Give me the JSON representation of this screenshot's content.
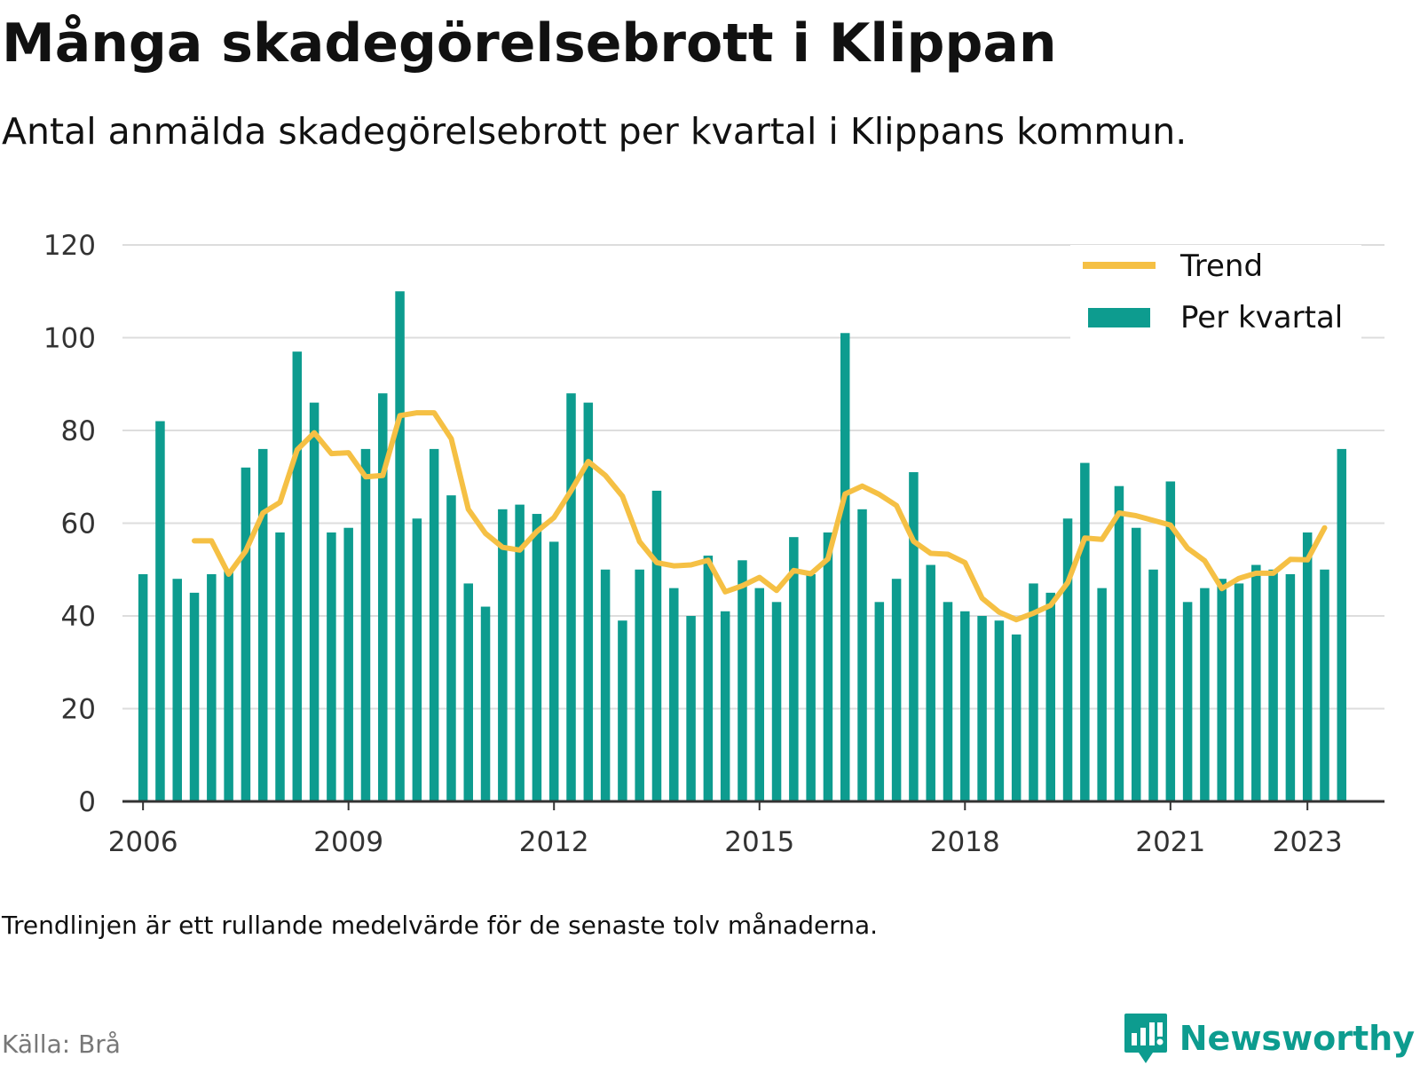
{
  "title": "Många skadegörelsebrott i Klippan",
  "subtitle": "Antal anmälda skadegörelsebrott per kvartal i Klippans kommun.",
  "note": "Trendlinjen är ett rullande medelvärde för de senaste tolv månaderna.",
  "source": "Källa: Brå",
  "brand": {
    "name": "Newsworthy",
    "icon": "newsworthy-logo-icon"
  },
  "colors": {
    "bar": "#0d9c8f",
    "trend": "#f5c044",
    "axis": "#333333",
    "grid": "#dddddd",
    "text": "#333333"
  },
  "chart_data": {
    "type": "bar",
    "ylim": [
      0,
      120
    ],
    "y_ticks": [
      0,
      20,
      40,
      60,
      80,
      100,
      120
    ],
    "x_range": [
      2005.7,
      2024.125
    ],
    "x_ticks": [
      {
        "label": "2006",
        "value": 2006
      },
      {
        "label": "2009",
        "value": 2009
      },
      {
        "label": "2012",
        "value": 2012
      },
      {
        "label": "2015",
        "value": 2015
      },
      {
        "label": "2018",
        "value": 2018
      },
      {
        "label": "2021",
        "value": 2021
      },
      {
        "label": "2023",
        "value": 2023
      }
    ],
    "legend_position": "top-right",
    "grid": true,
    "series": [
      {
        "name": "Per kvartal",
        "type": "bar",
        "start": "2006Q1",
        "values": [
          49,
          82,
          48,
          45,
          49,
          50,
          72,
          76,
          58,
          97,
          86,
          58,
          59,
          76,
          88,
          110,
          61,
          76,
          66,
          47,
          42,
          63,
          64,
          62,
          56,
          88,
          86,
          50,
          39,
          50,
          67,
          46,
          40,
          53,
          41,
          52,
          46,
          43,
          57,
          49,
          58,
          101,
          63,
          43,
          48,
          71,
          51,
          43,
          41,
          40,
          39,
          36,
          47,
          45,
          61,
          73,
          46,
          68,
          59,
          50,
          69,
          43,
          46,
          48,
          47,
          51,
          50,
          49,
          58,
          50,
          76
        ]
      },
      {
        "name": "Trend",
        "type": "line",
        "start": "2006Q4",
        "values": [
          56.2,
          56.2,
          49,
          54,
          62.2,
          64.5,
          75.8,
          79.5,
          75,
          75.2,
          70,
          70.3,
          83.2,
          83.8,
          83.8,
          78.2,
          63,
          57.8,
          54.8,
          54.2,
          58.2,
          61.2,
          67,
          73.3,
          70.3,
          65.8,
          56,
          51.5,
          50.8,
          51,
          52,
          45.2,
          46.5,
          48.3,
          45.5,
          49.8,
          49.1,
          52.3,
          66.3,
          68,
          66.2,
          63.8,
          56.1,
          53.5,
          53.3,
          51.5,
          43.8,
          40.8,
          39.2,
          40.6,
          42.3,
          47.2,
          56.8,
          56.5,
          62.2,
          61.6,
          60.6,
          59.6,
          54.6,
          51.9,
          45.9,
          48.1,
          49.2,
          49.2,
          52.2,
          52.1,
          59
        ]
      }
    ]
  }
}
